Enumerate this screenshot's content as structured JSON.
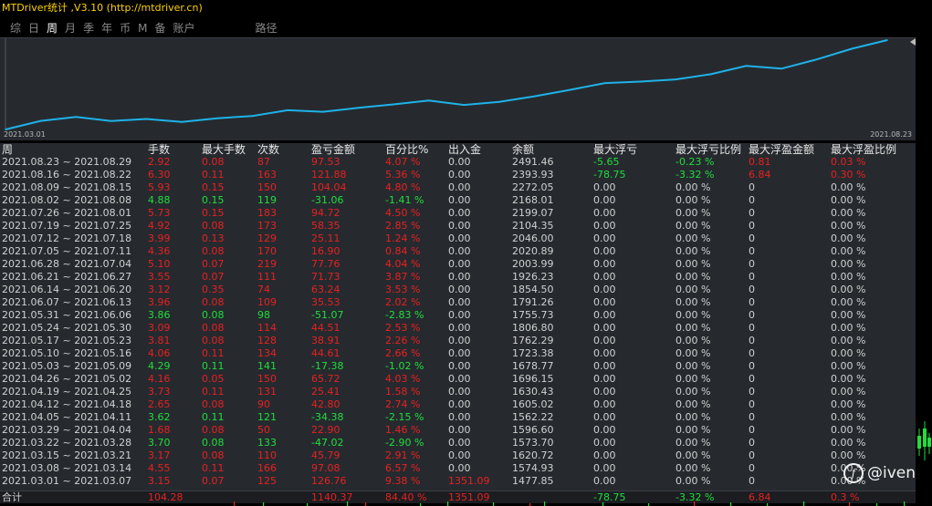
{
  "window": {
    "title": "MTDriver统计 ,V3.10 (http://mtdriver.cn)"
  },
  "tabs": [
    {
      "label": "综",
      "active": false
    },
    {
      "label": "日",
      "active": false
    },
    {
      "label": "周",
      "active": true
    },
    {
      "label": "月",
      "active": false
    },
    {
      "label": "季",
      "active": false
    },
    {
      "label": "年",
      "active": false
    },
    {
      "label": "币",
      "active": false
    },
    {
      "label": "M",
      "active": false
    },
    {
      "label": "备",
      "active": false
    },
    {
      "label": "账户",
      "active": false
    }
  ],
  "path_tab": "路径",
  "chart_data": {
    "type": "line",
    "title": "",
    "x_start_label": "2021.03.01",
    "x_end_label": "2021.08.23",
    "line_color": "#1fb2e8",
    "series": [
      {
        "x": [
          "2021.03.01",
          "2021.03.08",
          "2021.03.15",
          "2021.03.22",
          "2021.03.29",
          "2021.04.05",
          "2021.04.12",
          "2021.04.19",
          "2021.04.26",
          "2021.05.03",
          "2021.05.10",
          "2021.05.17",
          "2021.05.24",
          "2021.05.31",
          "2021.06.07",
          "2021.06.14",
          "2021.06.21",
          "2021.06.28",
          "2021.07.05",
          "2021.07.12",
          "2021.07.19",
          "2021.07.26",
          "2021.08.02",
          "2021.08.09",
          "2021.08.16",
          "2021.08.23"
        ],
        "values": [
          1477.85,
          1574.93,
          1620.72,
          1573.7,
          1596.6,
          1562.22,
          1605.02,
          1630.43,
          1696.15,
          1678.77,
          1723.38,
          1762.29,
          1806.8,
          1755.73,
          1791.26,
          1854.5,
          1926.23,
          2003.99,
          2020.89,
          2046.0,
          2104.35,
          2199.07,
          2168.01,
          2272.05,
          2393.93,
          2491.46
        ]
      }
    ]
  },
  "table": {
    "headers": [
      "周",
      "手数",
      "最大手数",
      "次数",
      "盈亏金额",
      "百分比%",
      "出入金",
      "余额",
      "最大浮亏",
      "最大浮亏比例",
      "最大浮盈金额",
      "最大浮盈比例"
    ],
    "rows": [
      {
        "cells": [
          "2021.08.23 ~ 2021.08.29",
          "2.92",
          "0.08",
          "87",
          "97.53",
          "4.07 %",
          "0.00",
          "2491.46",
          "-5.65",
          "-0.23 %",
          "0.81",
          "0.03 %"
        ],
        "tone": "pos",
        "float_tone": "mixed"
      },
      {
        "cells": [
          "2021.08.16 ~ 2021.08.22",
          "6.30",
          "0.11",
          "163",
          "121.88",
          "5.36 %",
          "0.00",
          "2393.93",
          "-78.75",
          "-3.32 %",
          "6.84",
          "0.30 %"
        ],
        "tone": "pos",
        "float_tone": "mixed"
      },
      {
        "cells": [
          "2021.08.09 ~ 2021.08.15",
          "5.93",
          "0.15",
          "150",
          "104.04",
          "4.80 %",
          "0.00",
          "2272.05",
          "0.00",
          "0.00 %",
          "0",
          "0.00 %"
        ],
        "tone": "pos",
        "float_tone": "none"
      },
      {
        "cells": [
          "2021.08.02 ~ 2021.08.08",
          "4.88",
          "0.15",
          "119",
          "-31.06",
          "-1.41 %",
          "0.00",
          "2168.01",
          "0.00",
          "0.00 %",
          "0",
          "0.00 %"
        ],
        "tone": "neg",
        "float_tone": "none"
      },
      {
        "cells": [
          "2021.07.26 ~ 2021.08.01",
          "5.73",
          "0.15",
          "183",
          "94.72",
          "4.50 %",
          "0.00",
          "2199.07",
          "0.00",
          "0.00 %",
          "0",
          "0.00 %"
        ],
        "tone": "pos",
        "float_tone": "none"
      },
      {
        "cells": [
          "2021.07.19 ~ 2021.07.25",
          "4.92",
          "0.08",
          "173",
          "58.35",
          "2.85 %",
          "0.00",
          "2104.35",
          "0.00",
          "0.00 %",
          "0",
          "0.00 %"
        ],
        "tone": "pos",
        "float_tone": "none"
      },
      {
        "cells": [
          "2021.07.12 ~ 2021.07.18",
          "3.99",
          "0.13",
          "129",
          "25.11",
          "1.24 %",
          "0.00",
          "2046.00",
          "0.00",
          "0.00 %",
          "0",
          "0.00 %"
        ],
        "tone": "pos",
        "float_tone": "none"
      },
      {
        "cells": [
          "2021.07.05 ~ 2021.07.11",
          "4.36",
          "0.08",
          "170",
          "16.90",
          "0.84 %",
          "0.00",
          "2020.89",
          "0.00",
          "0.00 %",
          "0",
          "0.00 %"
        ],
        "tone": "pos",
        "float_tone": "none"
      },
      {
        "cells": [
          "2021.06.28 ~ 2021.07.04",
          "5.10",
          "0.07",
          "219",
          "77.76",
          "4.04 %",
          "0.00",
          "2003.99",
          "0.00",
          "0.00 %",
          "0",
          "0.00 %"
        ],
        "tone": "pos",
        "float_tone": "none"
      },
      {
        "cells": [
          "2021.06.21 ~ 2021.06.27",
          "3.55",
          "0.07",
          "111",
          "71.73",
          "3.87 %",
          "0.00",
          "1926.23",
          "0.00",
          "0.00 %",
          "0",
          "0.00 %"
        ],
        "tone": "pos",
        "float_tone": "none"
      },
      {
        "cells": [
          "2021.06.14 ~ 2021.06.20",
          "3.12",
          "0.35",
          "74",
          "63.24",
          "3.53 %",
          "0.00",
          "1854.50",
          "0.00",
          "0.00 %",
          "0",
          "0.00 %"
        ],
        "tone": "pos",
        "float_tone": "none"
      },
      {
        "cells": [
          "2021.06.07 ~ 2021.06.13",
          "3.96",
          "0.08",
          "109",
          "35.53",
          "2.02 %",
          "0.00",
          "1791.26",
          "0.00",
          "0.00 %",
          "0",
          "0.00 %"
        ],
        "tone": "pos",
        "float_tone": "none"
      },
      {
        "cells": [
          "2021.05.31 ~ 2021.06.06",
          "3.86",
          "0.08",
          "98",
          "-51.07",
          "-2.83 %",
          "0.00",
          "1755.73",
          "0.00",
          "0.00 %",
          "0",
          "0.00 %"
        ],
        "tone": "neg",
        "float_tone": "none"
      },
      {
        "cells": [
          "2021.05.24 ~ 2021.05.30",
          "3.09",
          "0.08",
          "114",
          "44.51",
          "2.53 %",
          "0.00",
          "1806.80",
          "0.00",
          "0.00 %",
          "0",
          "0.00 %"
        ],
        "tone": "pos",
        "float_tone": "none"
      },
      {
        "cells": [
          "2021.05.17 ~ 2021.05.23",
          "3.81",
          "0.08",
          "128",
          "38.91",
          "2.26 %",
          "0.00",
          "1762.29",
          "0.00",
          "0.00 %",
          "0",
          "0.00 %"
        ],
        "tone": "pos",
        "float_tone": "none"
      },
      {
        "cells": [
          "2021.05.10 ~ 2021.05.16",
          "4.06",
          "0.11",
          "134",
          "44.61",
          "2.66 %",
          "0.00",
          "1723.38",
          "0.00",
          "0.00 %",
          "0",
          "0.00 %"
        ],
        "tone": "pos",
        "float_tone": "none"
      },
      {
        "cells": [
          "2021.05.03 ~ 2021.05.09",
          "4.29",
          "0.11",
          "141",
          "-17.38",
          "-1.02 %",
          "0.00",
          "1678.77",
          "0.00",
          "0.00 %",
          "0",
          "0.00 %"
        ],
        "tone": "neg",
        "float_tone": "none"
      },
      {
        "cells": [
          "2021.04.26 ~ 2021.05.02",
          "4.16",
          "0.05",
          "150",
          "65.72",
          "4.03 %",
          "0.00",
          "1696.15",
          "0.00",
          "0.00 %",
          "0",
          "0.00 %"
        ],
        "tone": "pos",
        "float_tone": "none"
      },
      {
        "cells": [
          "2021.04.19 ~ 2021.04.25",
          "3.73",
          "0.11",
          "131",
          "25.41",
          "1.58 %",
          "0.00",
          "1630.43",
          "0.00",
          "0.00 %",
          "0",
          "0.00 %"
        ],
        "tone": "pos",
        "float_tone": "none"
      },
      {
        "cells": [
          "2021.04.12 ~ 2021.04.18",
          "2.65",
          "0.08",
          "90",
          "42.80",
          "2.74 %",
          "0.00",
          "1605.02",
          "0.00",
          "0.00 %",
          "0",
          "0.00 %"
        ],
        "tone": "pos",
        "float_tone": "none"
      },
      {
        "cells": [
          "2021.04.05 ~ 2021.04.11",
          "3.62",
          "0.11",
          "121",
          "-34.38",
          "-2.15 %",
          "0.00",
          "1562.22",
          "0.00",
          "0.00 %",
          "0",
          "0.00 %"
        ],
        "tone": "neg",
        "float_tone": "none"
      },
      {
        "cells": [
          "2021.03.29 ~ 2021.04.04",
          "1.68",
          "0.08",
          "50",
          "22.90",
          "1.46 %",
          "0.00",
          "1596.60",
          "0.00",
          "0.00 %",
          "0",
          "0.00 %"
        ],
        "tone": "pos",
        "float_tone": "none"
      },
      {
        "cells": [
          "2021.03.22 ~ 2021.03.28",
          "3.70",
          "0.08",
          "133",
          "-47.02",
          "-2.90 %",
          "0.00",
          "1573.70",
          "0.00",
          "0.00 %",
          "0",
          "0.00 %"
        ],
        "tone": "neg",
        "float_tone": "none"
      },
      {
        "cells": [
          "2021.03.15 ~ 2021.03.21",
          "3.17",
          "0.08",
          "110",
          "45.79",
          "2.91 %",
          "0.00",
          "1620.72",
          "0.00",
          "0.00 %",
          "0",
          "0.00 %"
        ],
        "tone": "pos",
        "float_tone": "none"
      },
      {
        "cells": [
          "2021.03.08 ~ 2021.03.14",
          "4.55",
          "0.11",
          "166",
          "97.08",
          "6.57 %",
          "0.00",
          "1574.93",
          "0.00",
          "0.00 %",
          "0",
          "0.00 %"
        ],
        "tone": "pos",
        "float_tone": "none"
      },
      {
        "cells": [
          "2021.03.01 ~ 2021.03.07",
          "3.15",
          "0.07",
          "125",
          "126.76",
          "9.38 %",
          "1351.09",
          "1477.85",
          "0.00",
          "0.00 %",
          "0",
          "0.00 %"
        ],
        "tone": "pos",
        "float_tone": "none",
        "deposit": true
      }
    ],
    "totals": {
      "label": "合计",
      "lots": "104.28",
      "profit": "1140.37",
      "percent": "84.40 %",
      "deposit": "1351.09",
      "max_float_loss": "-78.75",
      "max_float_loss_pct": "-3.32 %",
      "max_float_profit": "6.84",
      "max_float_profit_pct": "0.3 %"
    }
  },
  "watermark": {
    "text": "@iven"
  },
  "colors": {
    "profit": "#e82020",
    "loss": "#21dd3c",
    "line": "#1fb2e8",
    "title": "#ffd400"
  }
}
